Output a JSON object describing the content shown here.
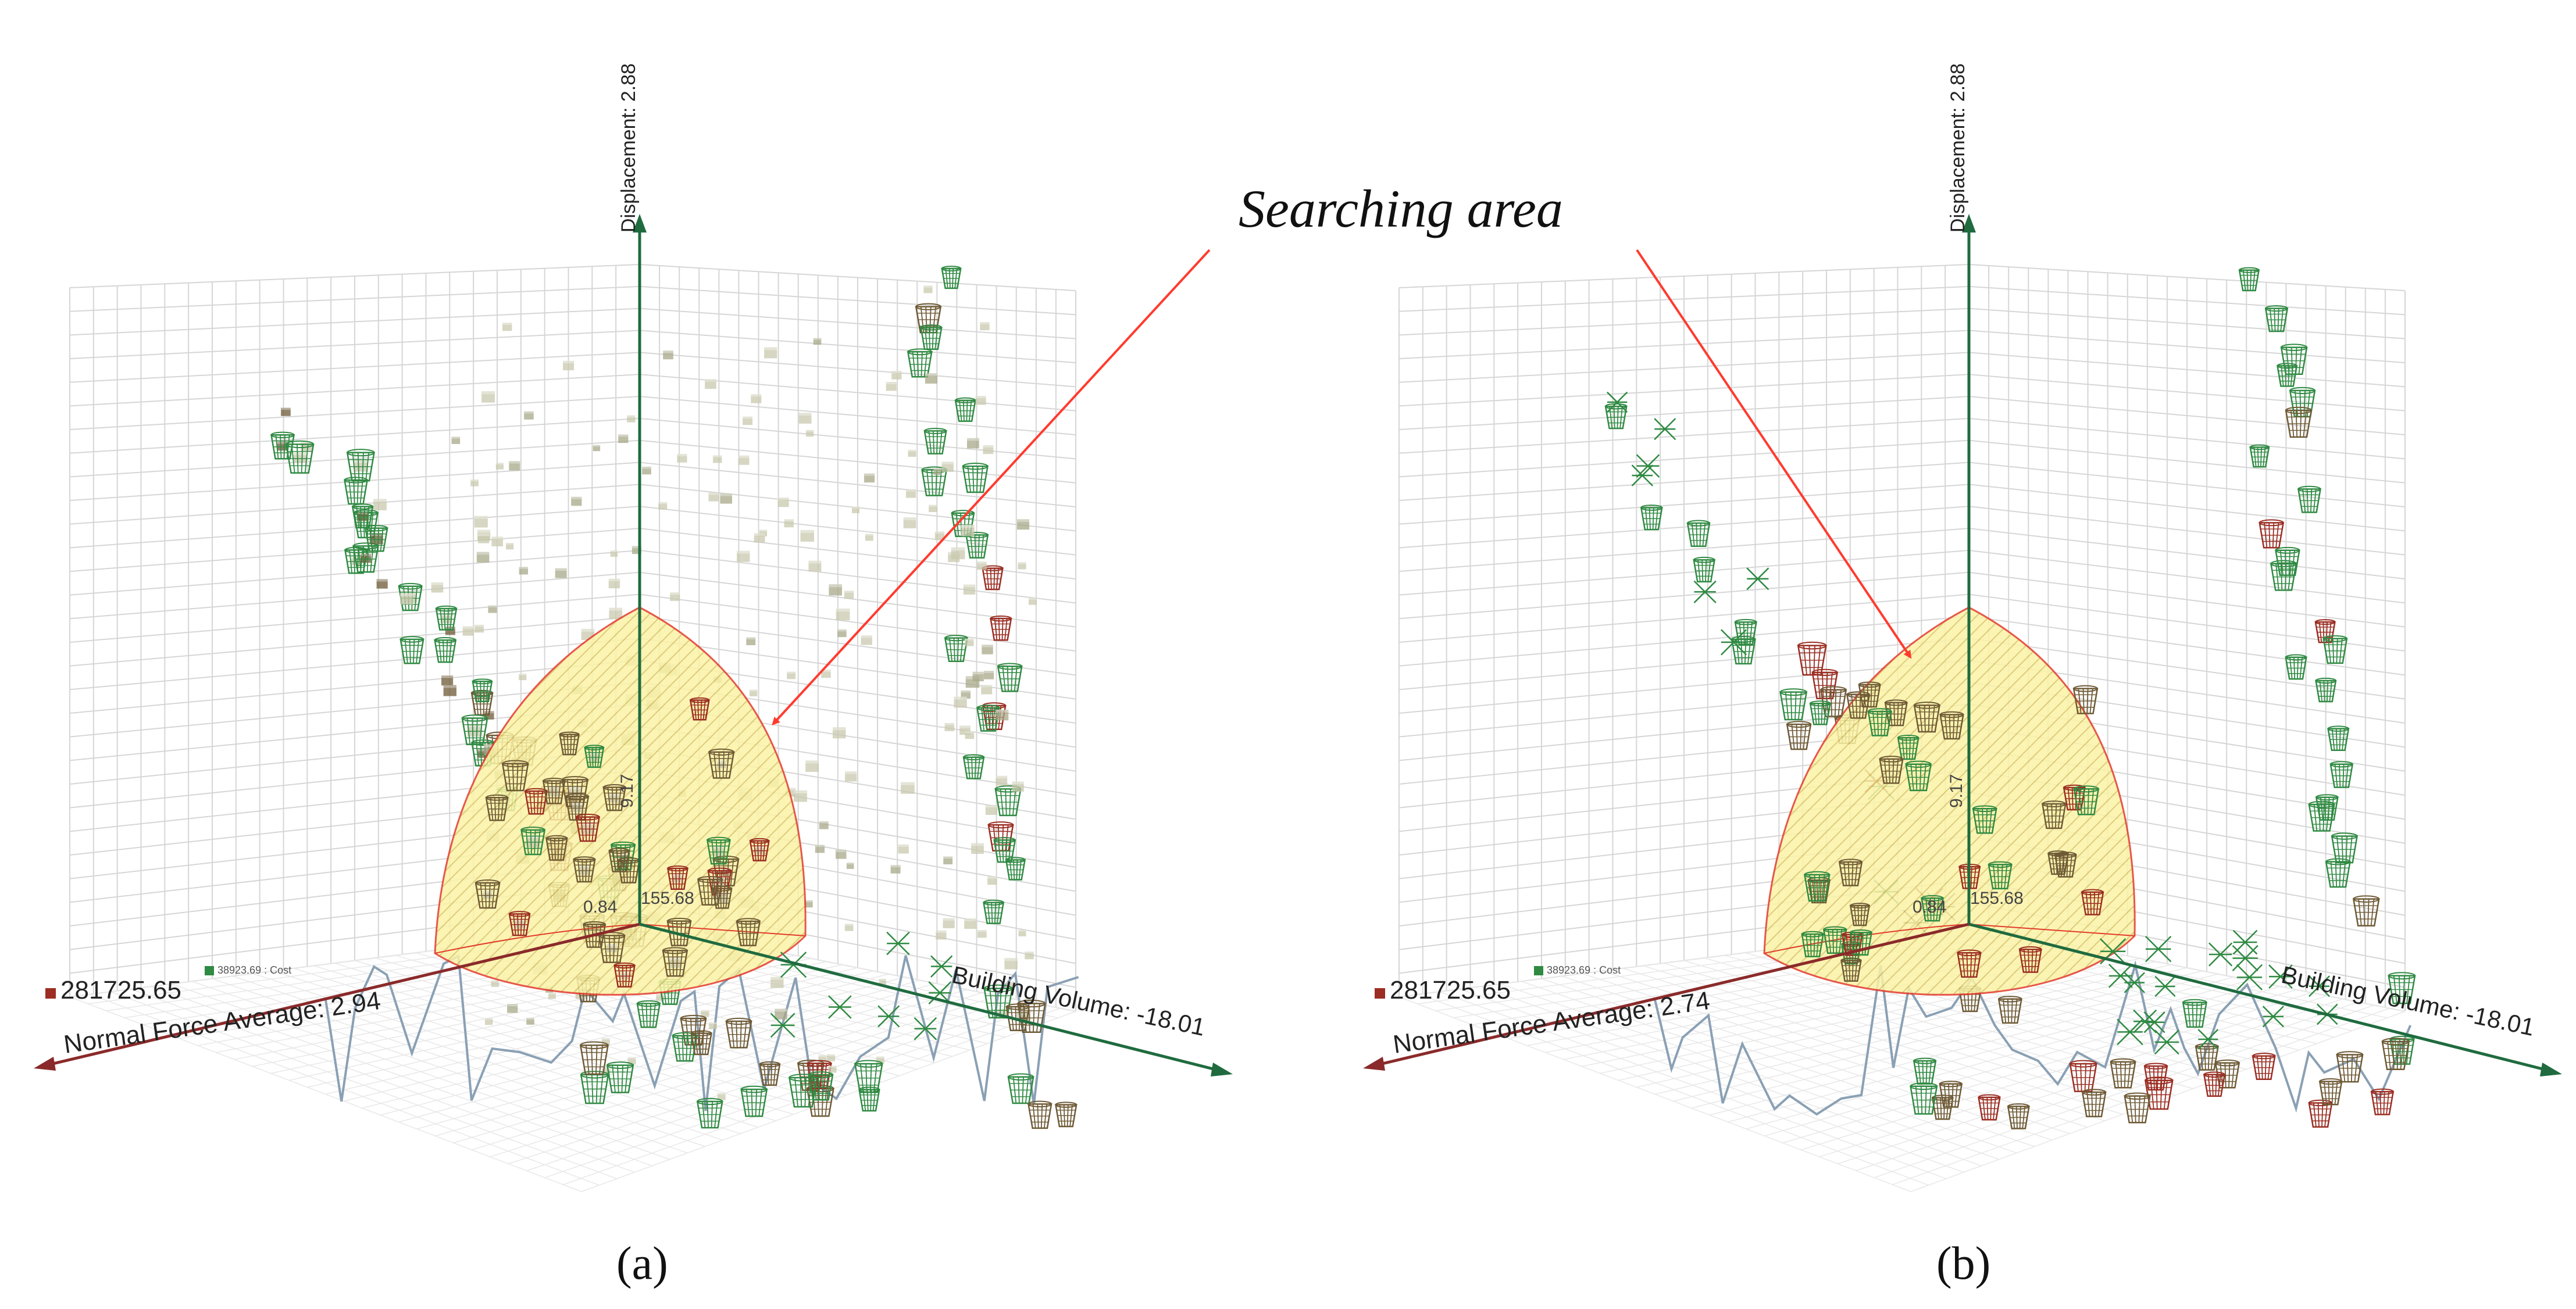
{
  "annotation": {
    "text": "Searching area"
  },
  "colors": {
    "red_axis": "#8b2a2a",
    "green_axis": "#1f6b3f",
    "grid": "#d6d6d6",
    "sphere_fill": "#fbf3a6",
    "sphere_edge": "#e33a2a",
    "arrow": "#ff3b2f",
    "history_line": "#8aa0b4",
    "marker_red": "#9b2d22",
    "marker_brown": "#6e5a35",
    "marker_green": "#2f8a42",
    "marker_pale": "#c8c8ae"
  },
  "chart_data": [
    {
      "type": "scatter",
      "panel_label": "(a)",
      "title": "",
      "axes": {
        "vertical": "Displacement: 2.88",
        "left": "Normal Force Average: 2.94",
        "right": "Building Volume: -18.01"
      },
      "origin_labels": [
        "9.17",
        "0.84",
        "155.68"
      ],
      "legend": {
        "red_value": "281725.65",
        "green_value": "38923.69 : Cost"
      },
      "markers": {
        "style": "basket",
        "cubes": true
      }
    },
    {
      "type": "scatter",
      "panel_label": "(b)",
      "title": "",
      "axes": {
        "vertical": "Displacement: 2.88",
        "left": "Normal Force Average: 2.74",
        "right": "Building Volume: -18.01"
      },
      "origin_labels": [
        "9.17",
        "0.84",
        "155.68"
      ],
      "legend": {
        "red_value": "281725.65",
        "green_value": "38923.69 : Cost"
      },
      "markers": {
        "style": "basket",
        "cubes": false
      }
    }
  ]
}
